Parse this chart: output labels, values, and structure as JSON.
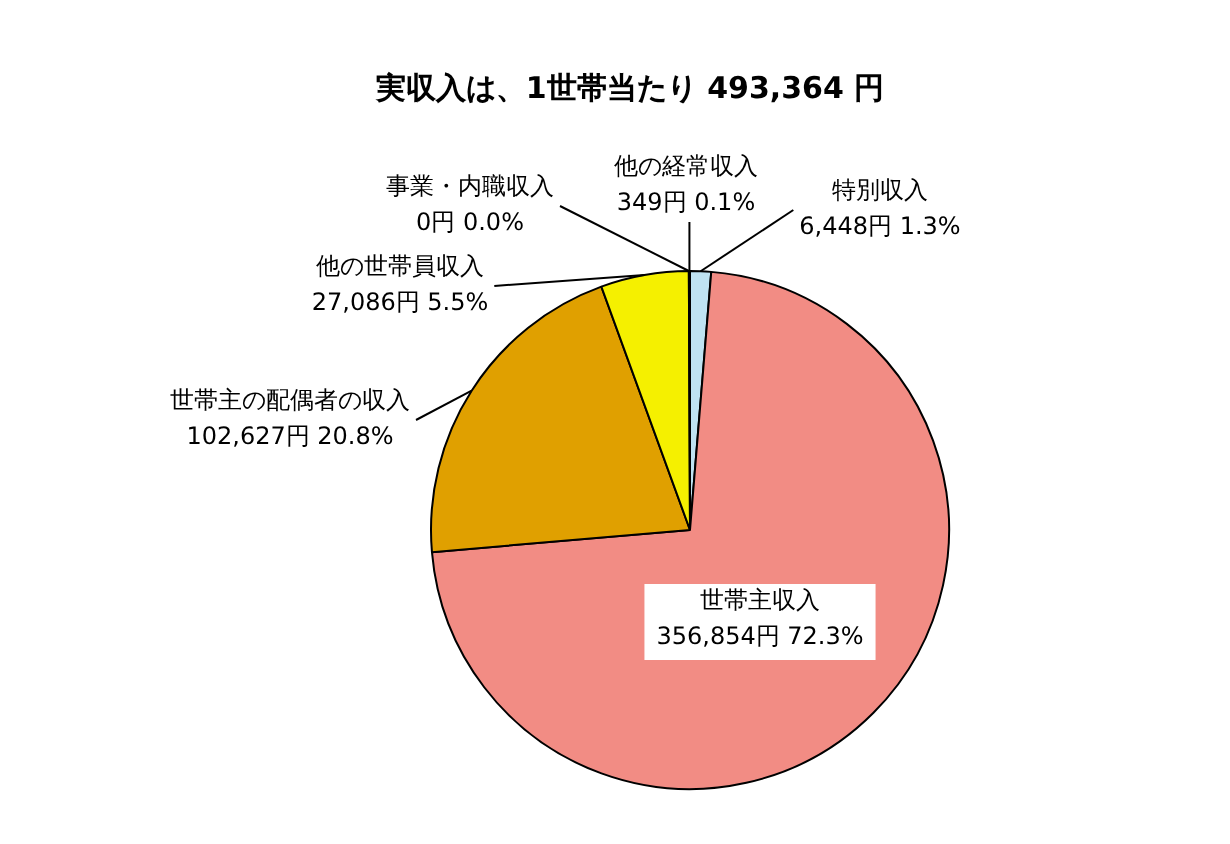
{
  "chart_data": {
    "type": "pie",
    "title": "実収入は、1世帯当たり 493,364 円",
    "categories": [
      "特別収入",
      "世帯主収入",
      "世帯主の配偶者の収入",
      "他の世帯員収入",
      "事業・内職収入",
      "他の経常収入"
    ],
    "values": [
      6448,
      356854,
      102627,
      27086,
      0,
      349
    ],
    "colors": [
      "#bfe3f2",
      "#f28c84",
      "#e0a000",
      "#f5f000",
      "#999999",
      "#c8c8c8"
    ],
    "value_labels": [
      "6,448円 1.3%",
      "356,854円 72.3%",
      "102,627円 20.8%",
      "27,086円 5.5%",
      "0円 0.0%",
      "349円 0.1%"
    ],
    "legend": false
  }
}
